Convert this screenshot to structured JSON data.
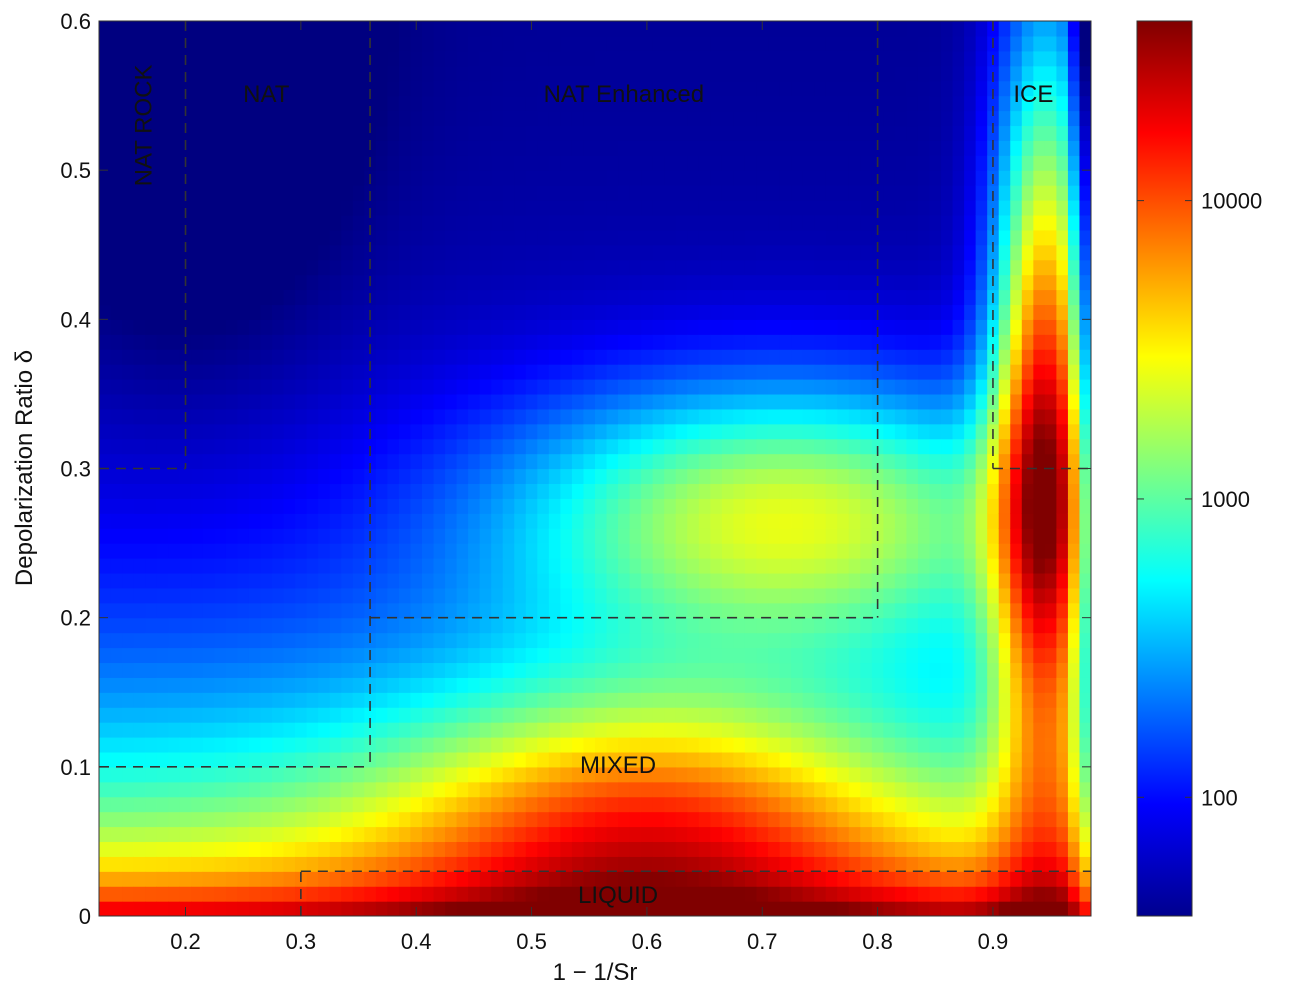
{
  "chart_data": {
    "type": "heatmap",
    "xlabel": "1 − 1/Sr",
    "ylabel": "Depolarization Ratio δ",
    "xlim": [
      0.125,
      0.985
    ],
    "ylim": [
      0,
      0.6
    ],
    "x_ticks": [
      0.2,
      0.3,
      0.4,
      0.5,
      0.6,
      0.7,
      0.8,
      0.9
    ],
    "x_tick_labels": [
      "0.2",
      "0.3",
      "0.4",
      "0.5",
      "0.6",
      "0.7",
      "0.8",
      "0.9"
    ],
    "y_ticks": [
      0,
      0.1,
      0.2,
      0.3,
      0.4,
      0.5,
      0.6
    ],
    "y_tick_labels": [
      "0",
      "0.1",
      "0.2",
      "0.3",
      "0.4",
      "0.5",
      "0.6"
    ],
    "colorbar": {
      "scale": "log",
      "range": [
        40,
        40000
      ],
      "ticks": [
        100,
        1000,
        10000
      ],
      "tick_labels": [
        "100",
        "1000",
        "10000"
      ],
      "colormap": "jet"
    },
    "region_labels": [
      {
        "text": "NAT ROCK",
        "x": 0.165,
        "y": 0.53,
        "rotation": -90
      },
      {
        "text": "NAT",
        "x": 0.27,
        "y": 0.55,
        "rotation": 0
      },
      {
        "text": "NAT Enhanced",
        "x": 0.58,
        "y": 0.55,
        "rotation": 0
      },
      {
        "text": "ICE",
        "x": 0.935,
        "y": 0.55,
        "rotation": 0
      },
      {
        "text": "MIXED",
        "x": 0.575,
        "y": 0.1,
        "rotation": 0
      },
      {
        "text": "LIQUID",
        "x": 0.575,
        "y": 0.013,
        "rotation": 0
      }
    ],
    "boundaries": [
      [
        [
          0.2,
          0.6
        ],
        [
          0.2,
          0.3
        ]
      ],
      [
        [
          0.125,
          0.3
        ],
        [
          0.2,
          0.3
        ]
      ],
      [
        [
          0.36,
          0.6
        ],
        [
          0.36,
          0.1
        ]
      ],
      [
        [
          0.125,
          0.1
        ],
        [
          0.36,
          0.1
        ]
      ],
      [
        [
          0.8,
          0.6
        ],
        [
          0.8,
          0.2
        ]
      ],
      [
        [
          0.36,
          0.2
        ],
        [
          0.8,
          0.2
        ]
      ],
      [
        [
          0.9,
          0.6
        ],
        [
          0.9,
          0.3
        ]
      ],
      [
        [
          0.9,
          0.3
        ],
        [
          0.985,
          0.3
        ]
      ],
      [
        [
          0.3,
          0.0
        ],
        [
          0.3,
          0.03
        ]
      ],
      [
        [
          0.3,
          0.03
        ],
        [
          0.985,
          0.03
        ]
      ]
    ],
    "grid": false
  }
}
